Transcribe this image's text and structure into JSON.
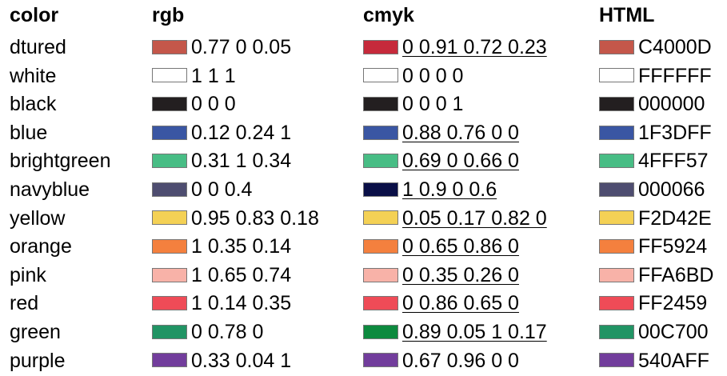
{
  "headers": {
    "color": "color",
    "rgb": "rgb",
    "cmyk": "cmyk",
    "html": "HTML"
  },
  "rows": [
    {
      "name": "dtured",
      "rgb": "0.77 0 0.05",
      "cmyk": "0 0.91 0.72 0.23",
      "cmyk_underlined": true,
      "html": "C4000D",
      "swatch_rgb": "#c4574a",
      "swatch_cmyk": "#c62a3b",
      "swatch_html": "#c4574a"
    },
    {
      "name": "white",
      "rgb": "1 1 1",
      "cmyk": "0 0 0 0",
      "cmyk_underlined": false,
      "html": "FFFFFF",
      "swatch_rgb": "#ffffff",
      "swatch_cmyk": "#ffffff",
      "swatch_html": "#ffffff"
    },
    {
      "name": "black",
      "rgb": "0 0 0",
      "cmyk": "0 0 0 1",
      "cmyk_underlined": false,
      "html": "000000",
      "swatch_rgb": "#231f20",
      "swatch_cmyk": "#231f20",
      "swatch_html": "#231f20"
    },
    {
      "name": "blue",
      "rgb": "0.12 0.24 1",
      "cmyk": "0.88 0.76 0 0",
      "cmyk_underlined": true,
      "html": "1F3DFF",
      "swatch_rgb": "#3a56a3",
      "swatch_cmyk": "#3a56a3",
      "swatch_html": "#3a56a3"
    },
    {
      "name": "brightgreen",
      "rgb": "0.31 1 0.34",
      "cmyk": "0.69 0 0.66 0",
      "cmyk_underlined": true,
      "html": "4FFF57",
      "swatch_rgb": "#48bd85",
      "swatch_cmyk": "#48bd85",
      "swatch_html": "#48bd85"
    },
    {
      "name": "navyblue",
      "rgb": "0 0 0.4",
      "cmyk": "1 0.9 0 0.6",
      "cmyk_underlined": true,
      "html": "000066",
      "swatch_rgb": "#4e4d70",
      "swatch_cmyk": "#0a0f47",
      "swatch_html": "#4e4d70"
    },
    {
      "name": "yellow",
      "rgb": "0.95 0.83 0.18",
      "cmyk": "0.05 0.17 0.82 0",
      "cmyk_underlined": true,
      "html": "F2D42E",
      "swatch_rgb": "#f4d155",
      "swatch_cmyk": "#f4d155",
      "swatch_html": "#f4d155"
    },
    {
      "name": "orange",
      "rgb": "1 0.35 0.14",
      "cmyk": "0 0.65 0.86 0",
      "cmyk_underlined": true,
      "html": "FF5924",
      "swatch_rgb": "#f4803e",
      "swatch_cmyk": "#f4803e",
      "swatch_html": "#f4803e"
    },
    {
      "name": "pink",
      "rgb": "1 0.65 0.74",
      "cmyk": "0 0.35 0.26 0",
      "cmyk_underlined": true,
      "html": "FFA6BD",
      "swatch_rgb": "#f8b2a8",
      "swatch_cmyk": "#f8b2a8",
      "swatch_html": "#f8b2a8"
    },
    {
      "name": "red",
      "rgb": "1 0.14 0.35",
      "cmyk": "0 0.86 0.65 0",
      "cmyk_underlined": true,
      "html": "FF2459",
      "swatch_rgb": "#ef4b57",
      "swatch_cmyk": "#ef4b57",
      "swatch_html": "#ef4b57"
    },
    {
      "name": "green",
      "rgb": "0 0.78 0",
      "cmyk": "0.89 0.05 1 0.17",
      "cmyk_underlined": true,
      "html": "00C700",
      "swatch_rgb": "#219464",
      "swatch_cmyk": "#0d8a3e",
      "swatch_html": "#219464"
    },
    {
      "name": "purple",
      "rgb": "0.33 0.04 1",
      "cmyk": "0.67 0.96 0 0",
      "cmyk_underlined": false,
      "html": "540AFF",
      "swatch_rgb": "#723d9c",
      "swatch_cmyk": "#723d9c",
      "swatch_html": "#723d9c"
    }
  ]
}
